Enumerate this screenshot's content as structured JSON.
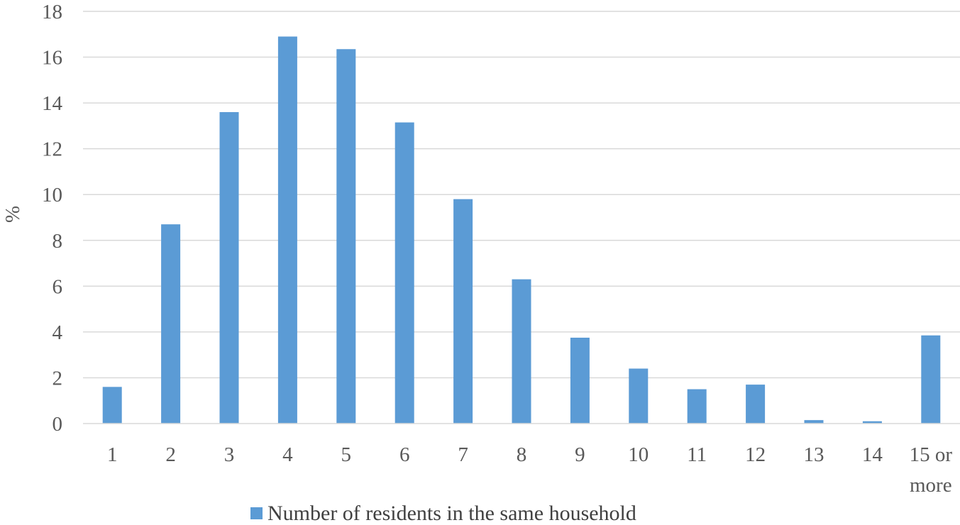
{
  "chart_data": {
    "type": "bar",
    "title": "",
    "xlabel": "",
    "ylabel": "%",
    "ylim": [
      0,
      18
    ],
    "ytick_step": 2,
    "grid": true,
    "legend_position": "bottom",
    "categories": [
      "1",
      "2",
      "3",
      "4",
      "5",
      "6",
      "7",
      "8",
      "9",
      "10",
      "11",
      "12",
      "13",
      "14",
      "15 or more"
    ],
    "series": [
      {
        "name": "Number of residents in the same household",
        "color": "#5b9bd5",
        "values": [
          1.6,
          8.7,
          13.6,
          16.9,
          16.35,
          13.15,
          9.8,
          6.3,
          3.75,
          2.4,
          1.5,
          1.7,
          0.15,
          0.1,
          3.85
        ]
      }
    ]
  }
}
